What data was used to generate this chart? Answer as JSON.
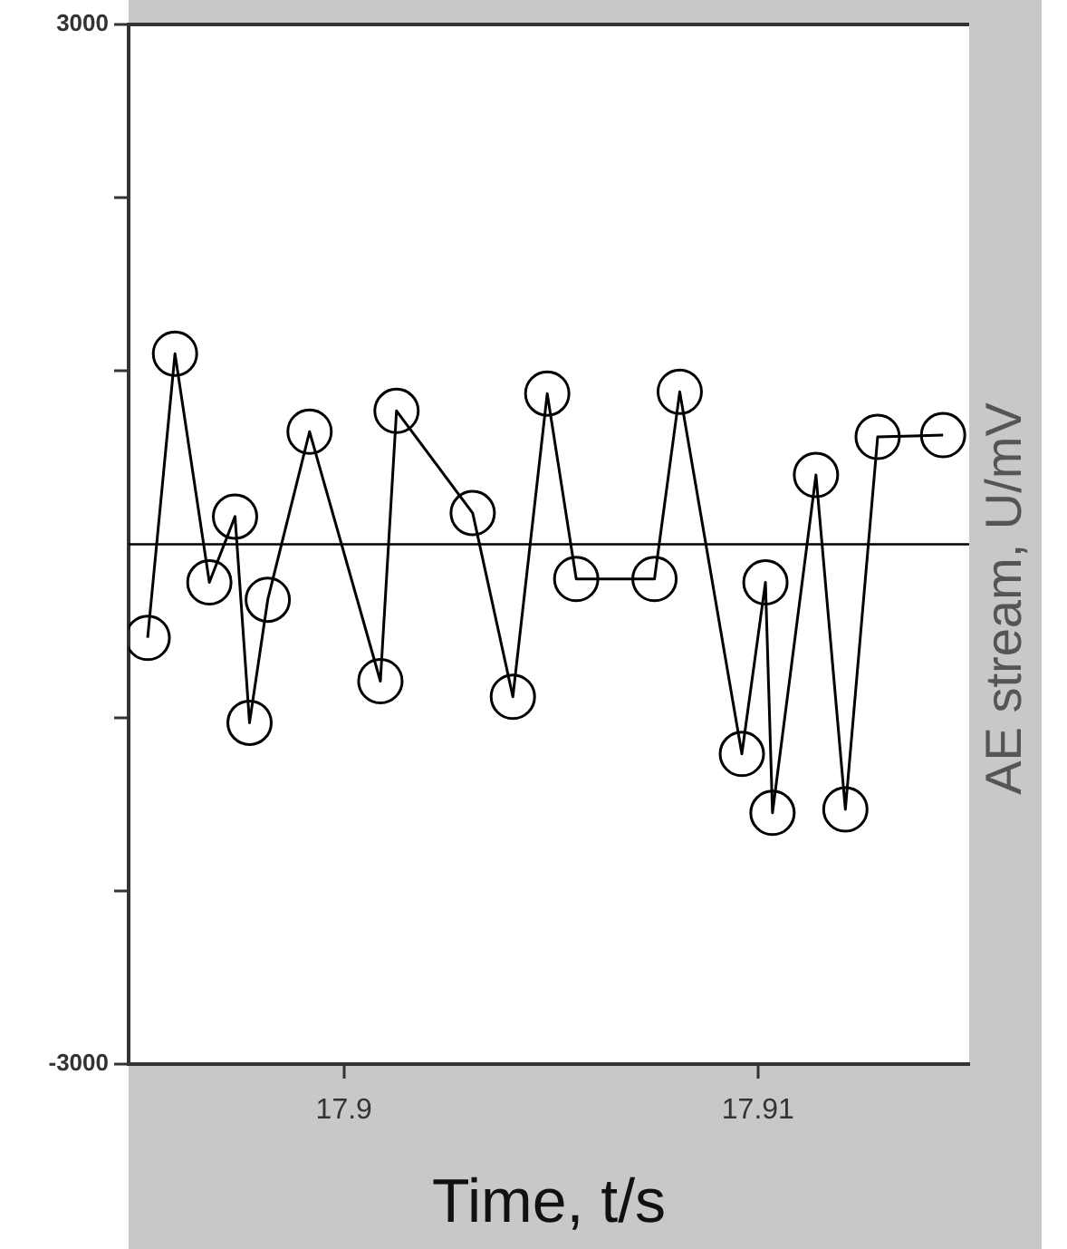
{
  "chart_data": {
    "type": "line",
    "xlabel": "Time, t/s",
    "ylabel": "AE stream, U/mV",
    "x": [
      17.89526,
      17.89592,
      17.89675,
      17.89737,
      17.89772,
      17.89816,
      17.89917,
      17.90088,
      17.90127,
      17.90311,
      17.90408,
      17.90491,
      17.90561,
      17.9075,
      17.90811,
      17.90961,
      17.91018,
      17.91035,
      17.9114,
      17.91211,
      17.91289,
      17.91447
    ],
    "series": [
      {
        "color": "#000000",
        "values": [
          -540,
          1100,
          -220,
          160,
          -1030,
          -320,
          650,
          -790,
          770,
          180,
          -880,
          870,
          -200,
          -200,
          880,
          -1210,
          -220,
          -1550,
          400,
          -1530,
          620,
          630
        ]
      }
    ],
    "xlim": [
      17.8948,
      17.9151
    ],
    "xticks": [
      17.9,
      17.91
    ],
    "ylim": [
      -3000,
      3000
    ],
    "yticks": [
      3000,
      {
        "value": 2000,
        "label": null
      },
      {
        "value": 1000,
        "label": null
      },
      {
        "value": -1000,
        "label": null
      },
      {
        "value": -2000,
        "label": null
      },
      -3000
    ],
    "ref_lines": [
      {
        "axis": "y",
        "value": 0,
        "color": "#000000"
      }
    ],
    "marker": "circle"
  }
}
